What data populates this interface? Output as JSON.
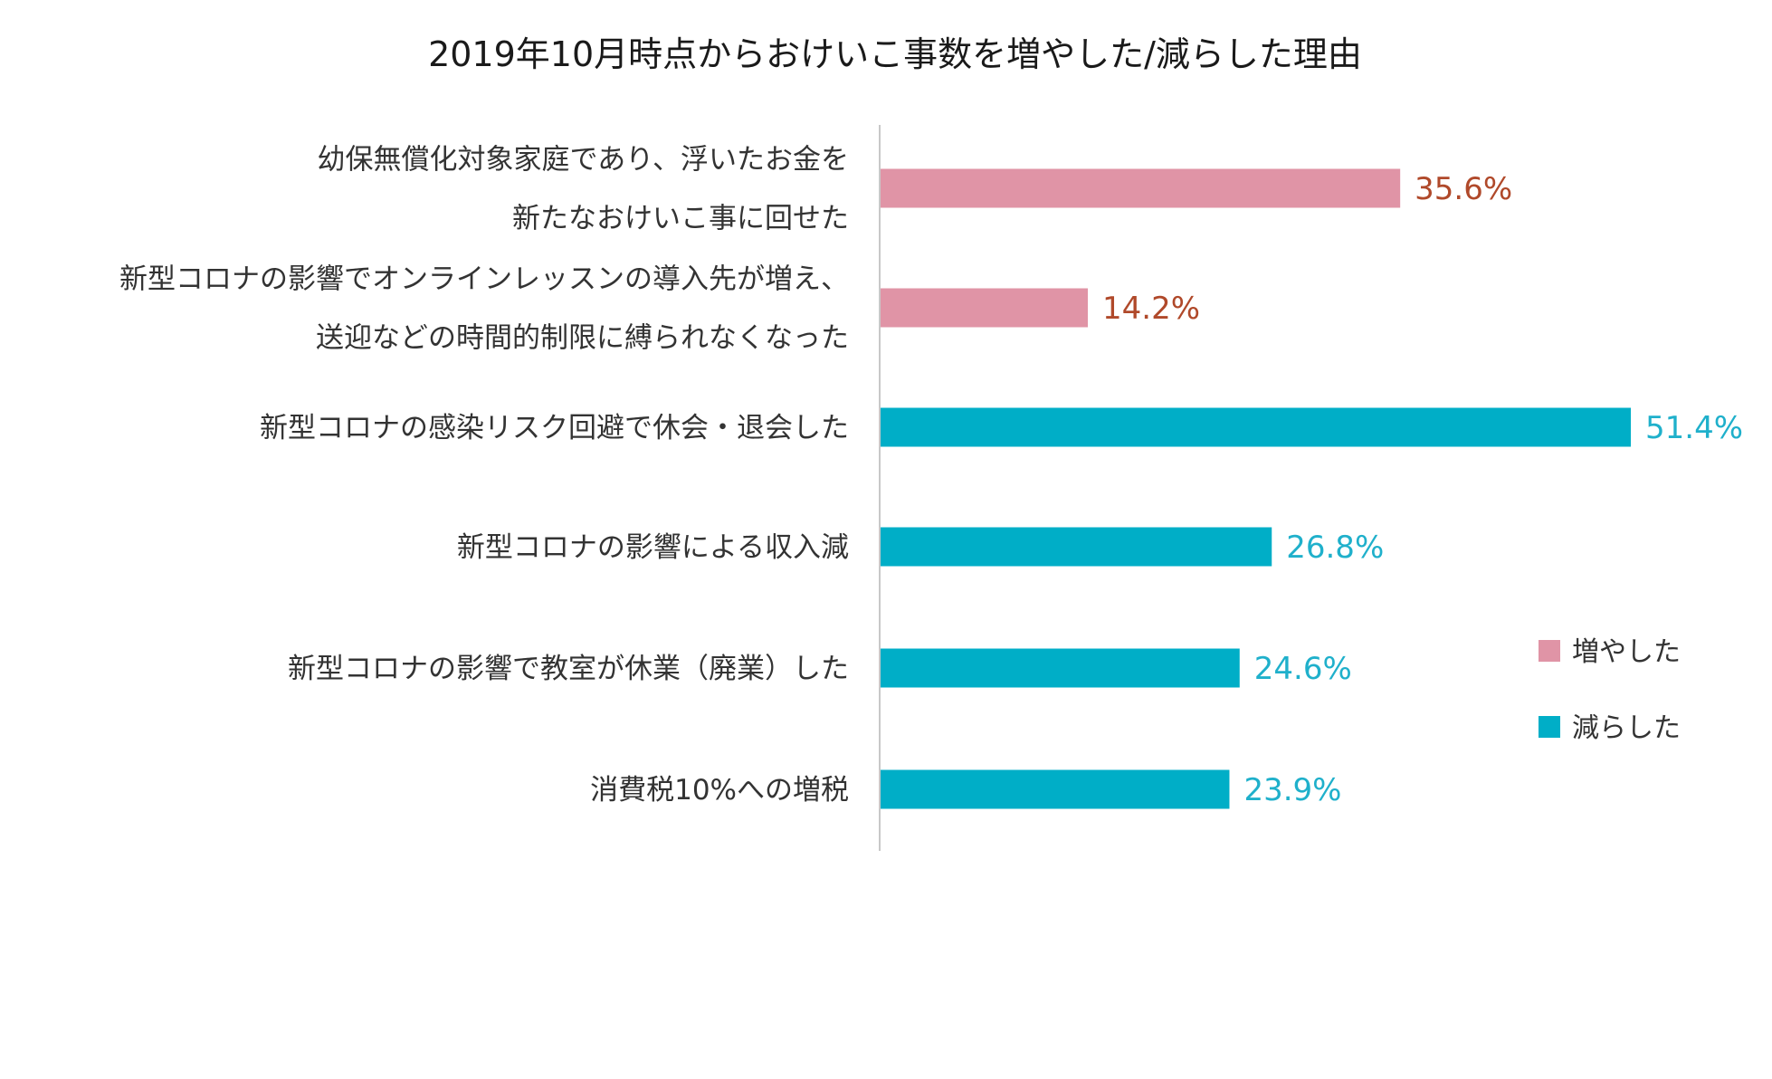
{
  "chart_data": {
    "type": "bar",
    "orientation": "horizontal",
    "title": "2019年10月時点からおけいこ事数を増やした/減らした理由",
    "value_suffix": "%",
    "categories": [
      [
        "幼保無償化対象家庭であり、浮いたお金を",
        "新たなおけいこ事に回せた"
      ],
      [
        "新型コロナの影響でオンラインレッスンの導入先が増え、",
        "送迎などの時間的制限に縛られなくなった"
      ],
      [
        "新型コロナの感染リスク回避で休会・退会した"
      ],
      [
        "新型コロナの影響による収入減"
      ],
      [
        "新型コロナの影響で教室が休業（廃業）した"
      ],
      [
        "消費税10%への増税"
      ]
    ],
    "values": [
      35.6,
      14.2,
      51.4,
      26.8,
      24.6,
      23.9
    ],
    "series_index": [
      0,
      0,
      1,
      1,
      1,
      1
    ],
    "series": [
      {
        "name": "増やした",
        "color": "#E094A6",
        "label_color": "#B0492A"
      },
      {
        "name": "減らした",
        "color": "#00AEC7",
        "label_color": "#1FB0CB"
      }
    ],
    "xlim": [
      0,
      51.4
    ],
    "grid": false,
    "legend_position": "right"
  }
}
